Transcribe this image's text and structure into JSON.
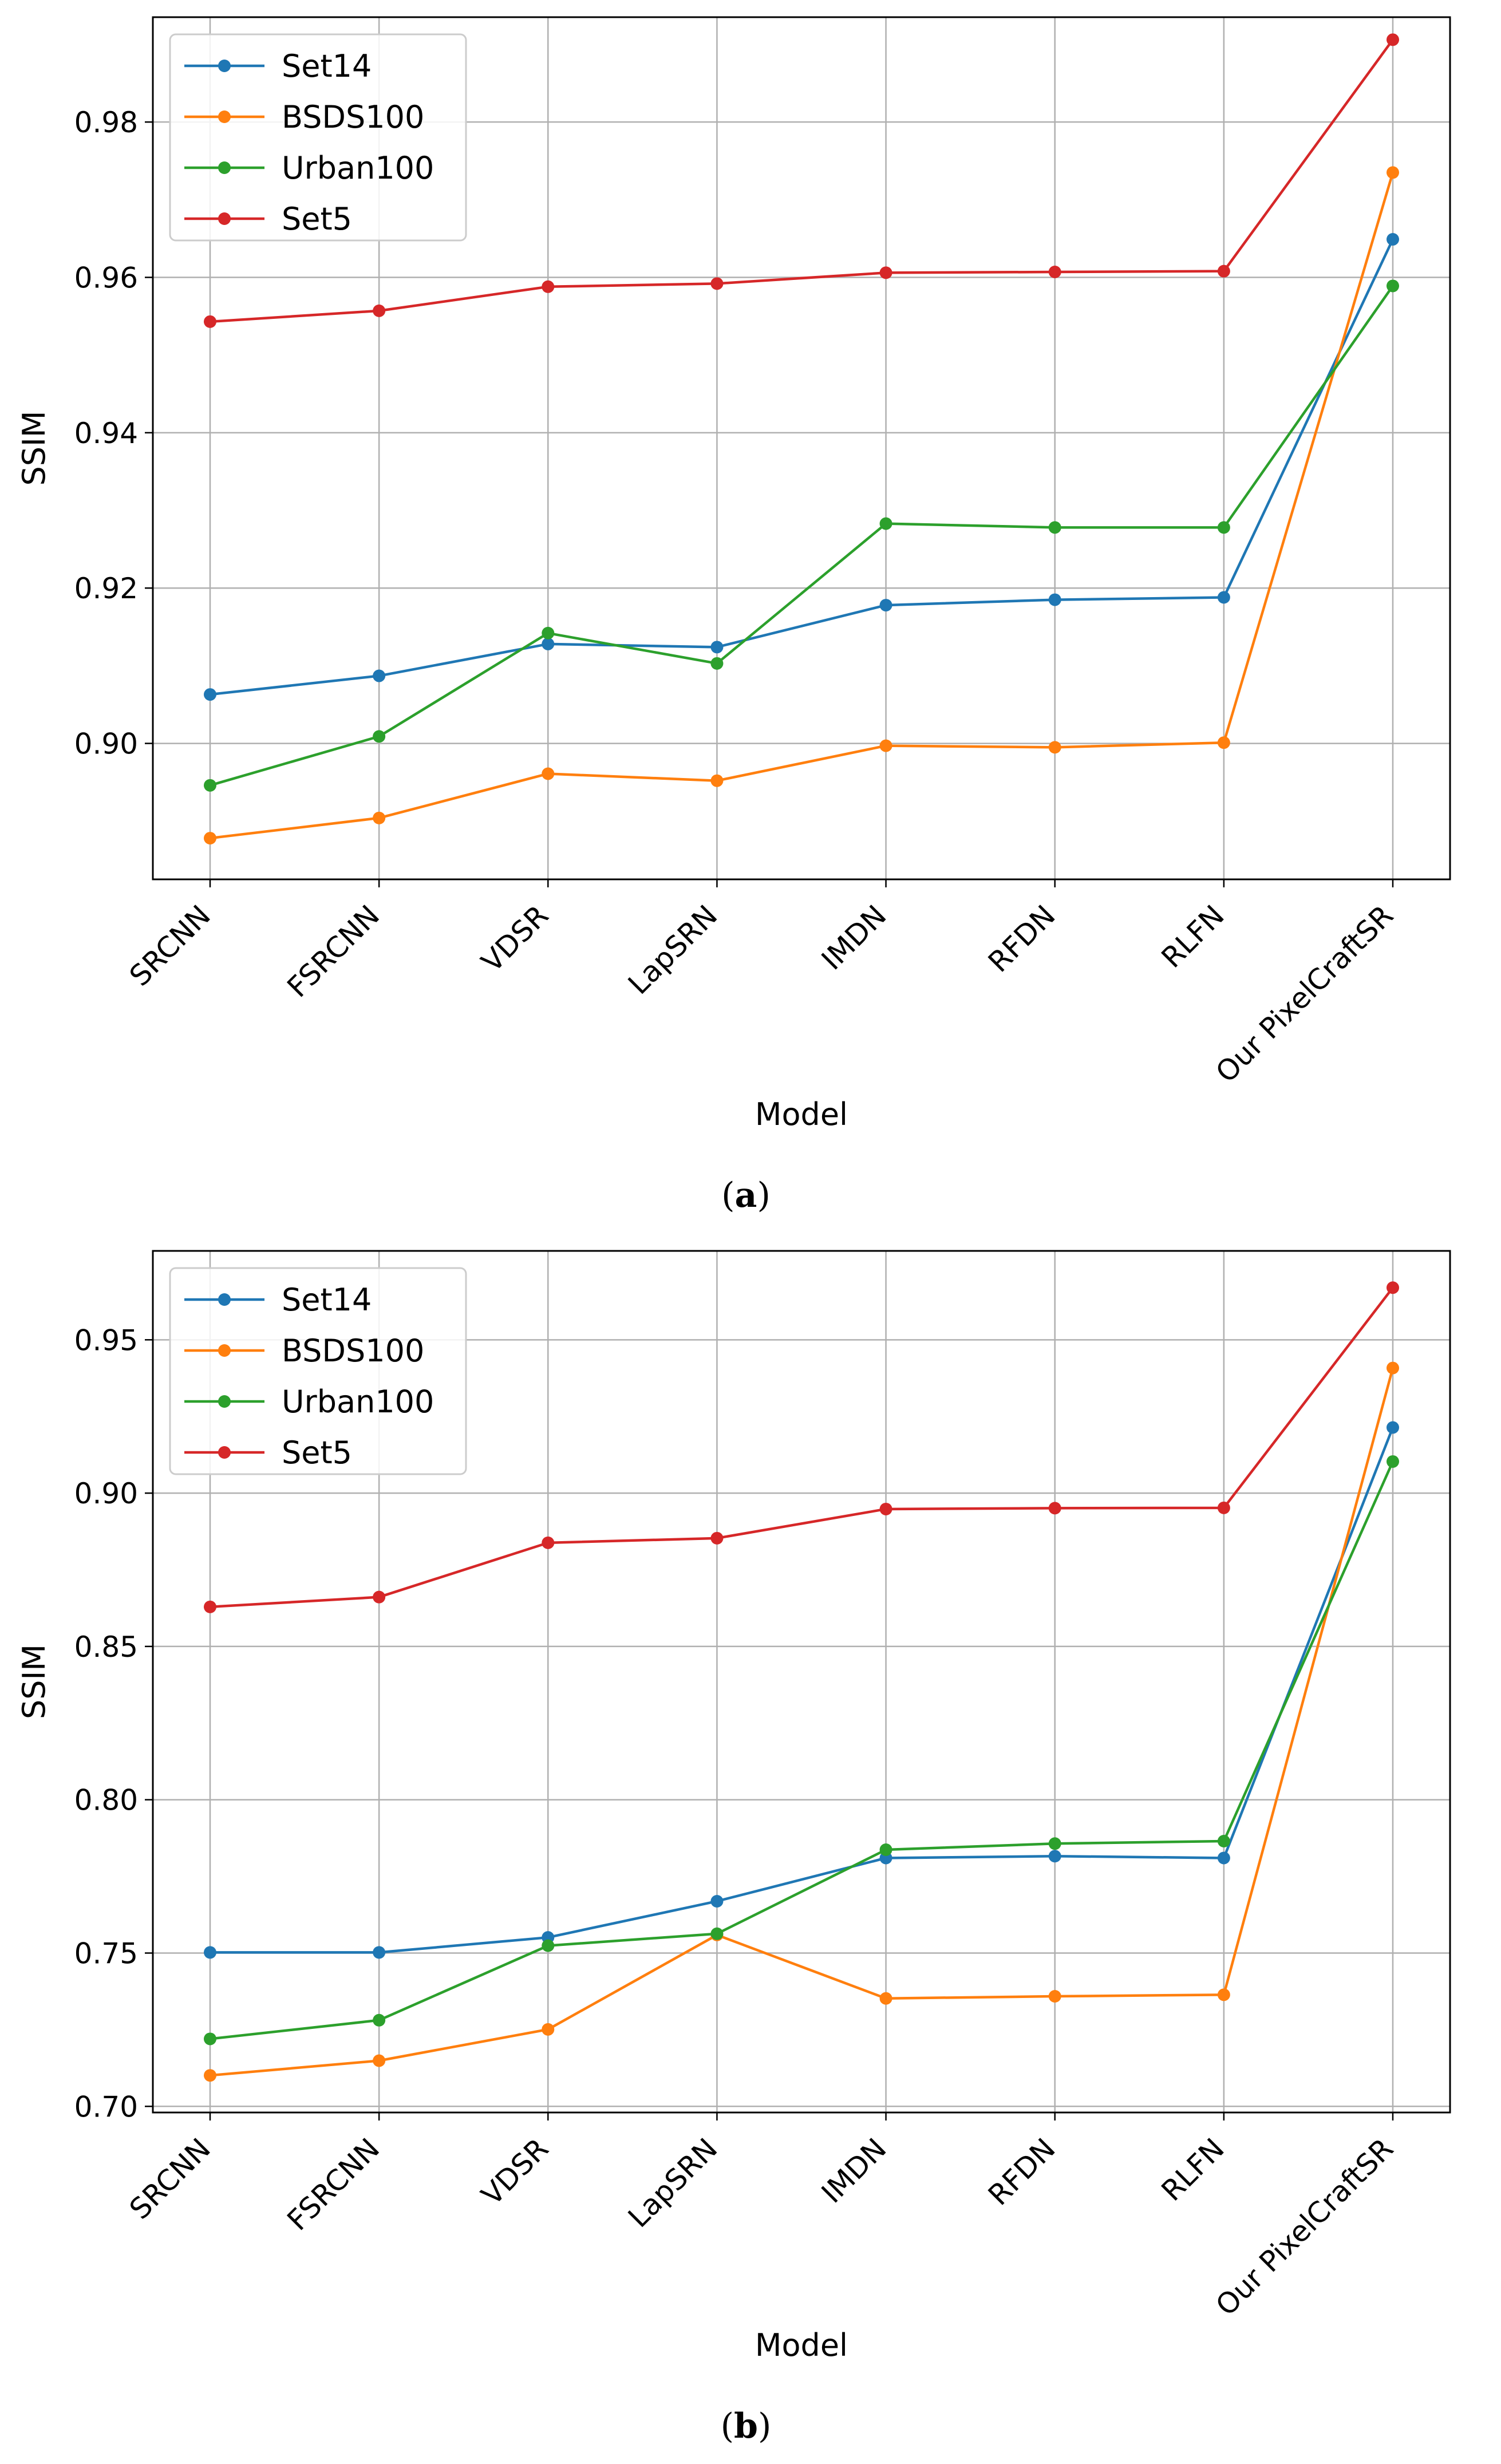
{
  "chart_data": [
    {
      "type": "line",
      "caption": "(a)",
      "caption_letter": "a",
      "xlabel": "Model",
      "ylabel": "SSIM",
      "categories": [
        "SRCNN",
        "FSRCNN",
        "VDSR",
        "LapSRN",
        "IMDN",
        "RFDN",
        "RLFN",
        "Our PixelCraftSR"
      ],
      "ylim": [
        0.8825,
        0.9935
      ],
      "yticks": [
        0.9,
        0.92,
        0.94,
        0.96,
        0.98
      ],
      "ytick_labels": [
        "0.90",
        "0.92",
        "0.94",
        "0.96",
        "0.98"
      ],
      "grid": true,
      "legend": "top-left",
      "series": [
        {
          "name": "Set14",
          "color": "#1f77b4",
          "values": [
            0.9063,
            0.9087,
            0.9128,
            0.9124,
            0.9178,
            0.9185,
            0.9188,
            0.9649
          ]
        },
        {
          "name": "BSDS100",
          "color": "#ff7f0e",
          "values": [
            0.8878,
            0.8904,
            0.8961,
            0.8952,
            0.8997,
            0.8995,
            0.9001,
            0.9735
          ]
        },
        {
          "name": "Urban100",
          "color": "#2ca02c",
          "values": [
            0.8946,
            0.9009,
            0.9142,
            0.9103,
            0.9283,
            0.9278,
            0.9278,
            0.9589
          ]
        },
        {
          "name": "Set5",
          "color": "#d62728",
          "values": [
            0.9543,
            0.9557,
            0.9588,
            0.9592,
            0.9606,
            0.9607,
            0.9608,
            0.9906
          ]
        }
      ]
    },
    {
      "type": "line",
      "caption": "(b)",
      "caption_letter": "b",
      "xlabel": "Model",
      "ylabel": "SSIM",
      "categories": [
        "SRCNN",
        "FSRCNN",
        "VDSR",
        "LapSRN",
        "IMDN",
        "RFDN",
        "RLFN",
        "Our PixelCraftSR"
      ],
      "ylim": [
        0.698,
        0.979
      ],
      "yticks": [
        0.7,
        0.75,
        0.8,
        0.85,
        0.9,
        0.95
      ],
      "ytick_labels": [
        "0.70",
        "0.75",
        "0.80",
        "0.85",
        "0.90",
        "0.95"
      ],
      "grid": true,
      "legend": "top-left",
      "series": [
        {
          "name": "Set14",
          "color": "#1f77b4",
          "values": [
            0.7502,
            0.7502,
            0.7551,
            0.7669,
            0.781,
            0.7816,
            0.781,
            0.9214
          ]
        },
        {
          "name": "BSDS100",
          "color": "#ff7f0e",
          "values": [
            0.7101,
            0.7149,
            0.7251,
            0.7559,
            0.7352,
            0.7359,
            0.7364,
            0.9408
          ]
        },
        {
          "name": "Urban100",
          "color": "#2ca02c",
          "values": [
            0.722,
            0.7281,
            0.7524,
            0.7563,
            0.7837,
            0.7857,
            0.7865,
            0.9103
          ]
        },
        {
          "name": "Set5",
          "color": "#d62728",
          "values": [
            0.8629,
            0.8661,
            0.8838,
            0.8853,
            0.8948,
            0.8951,
            0.8952,
            0.967
          ]
        }
      ]
    }
  ]
}
